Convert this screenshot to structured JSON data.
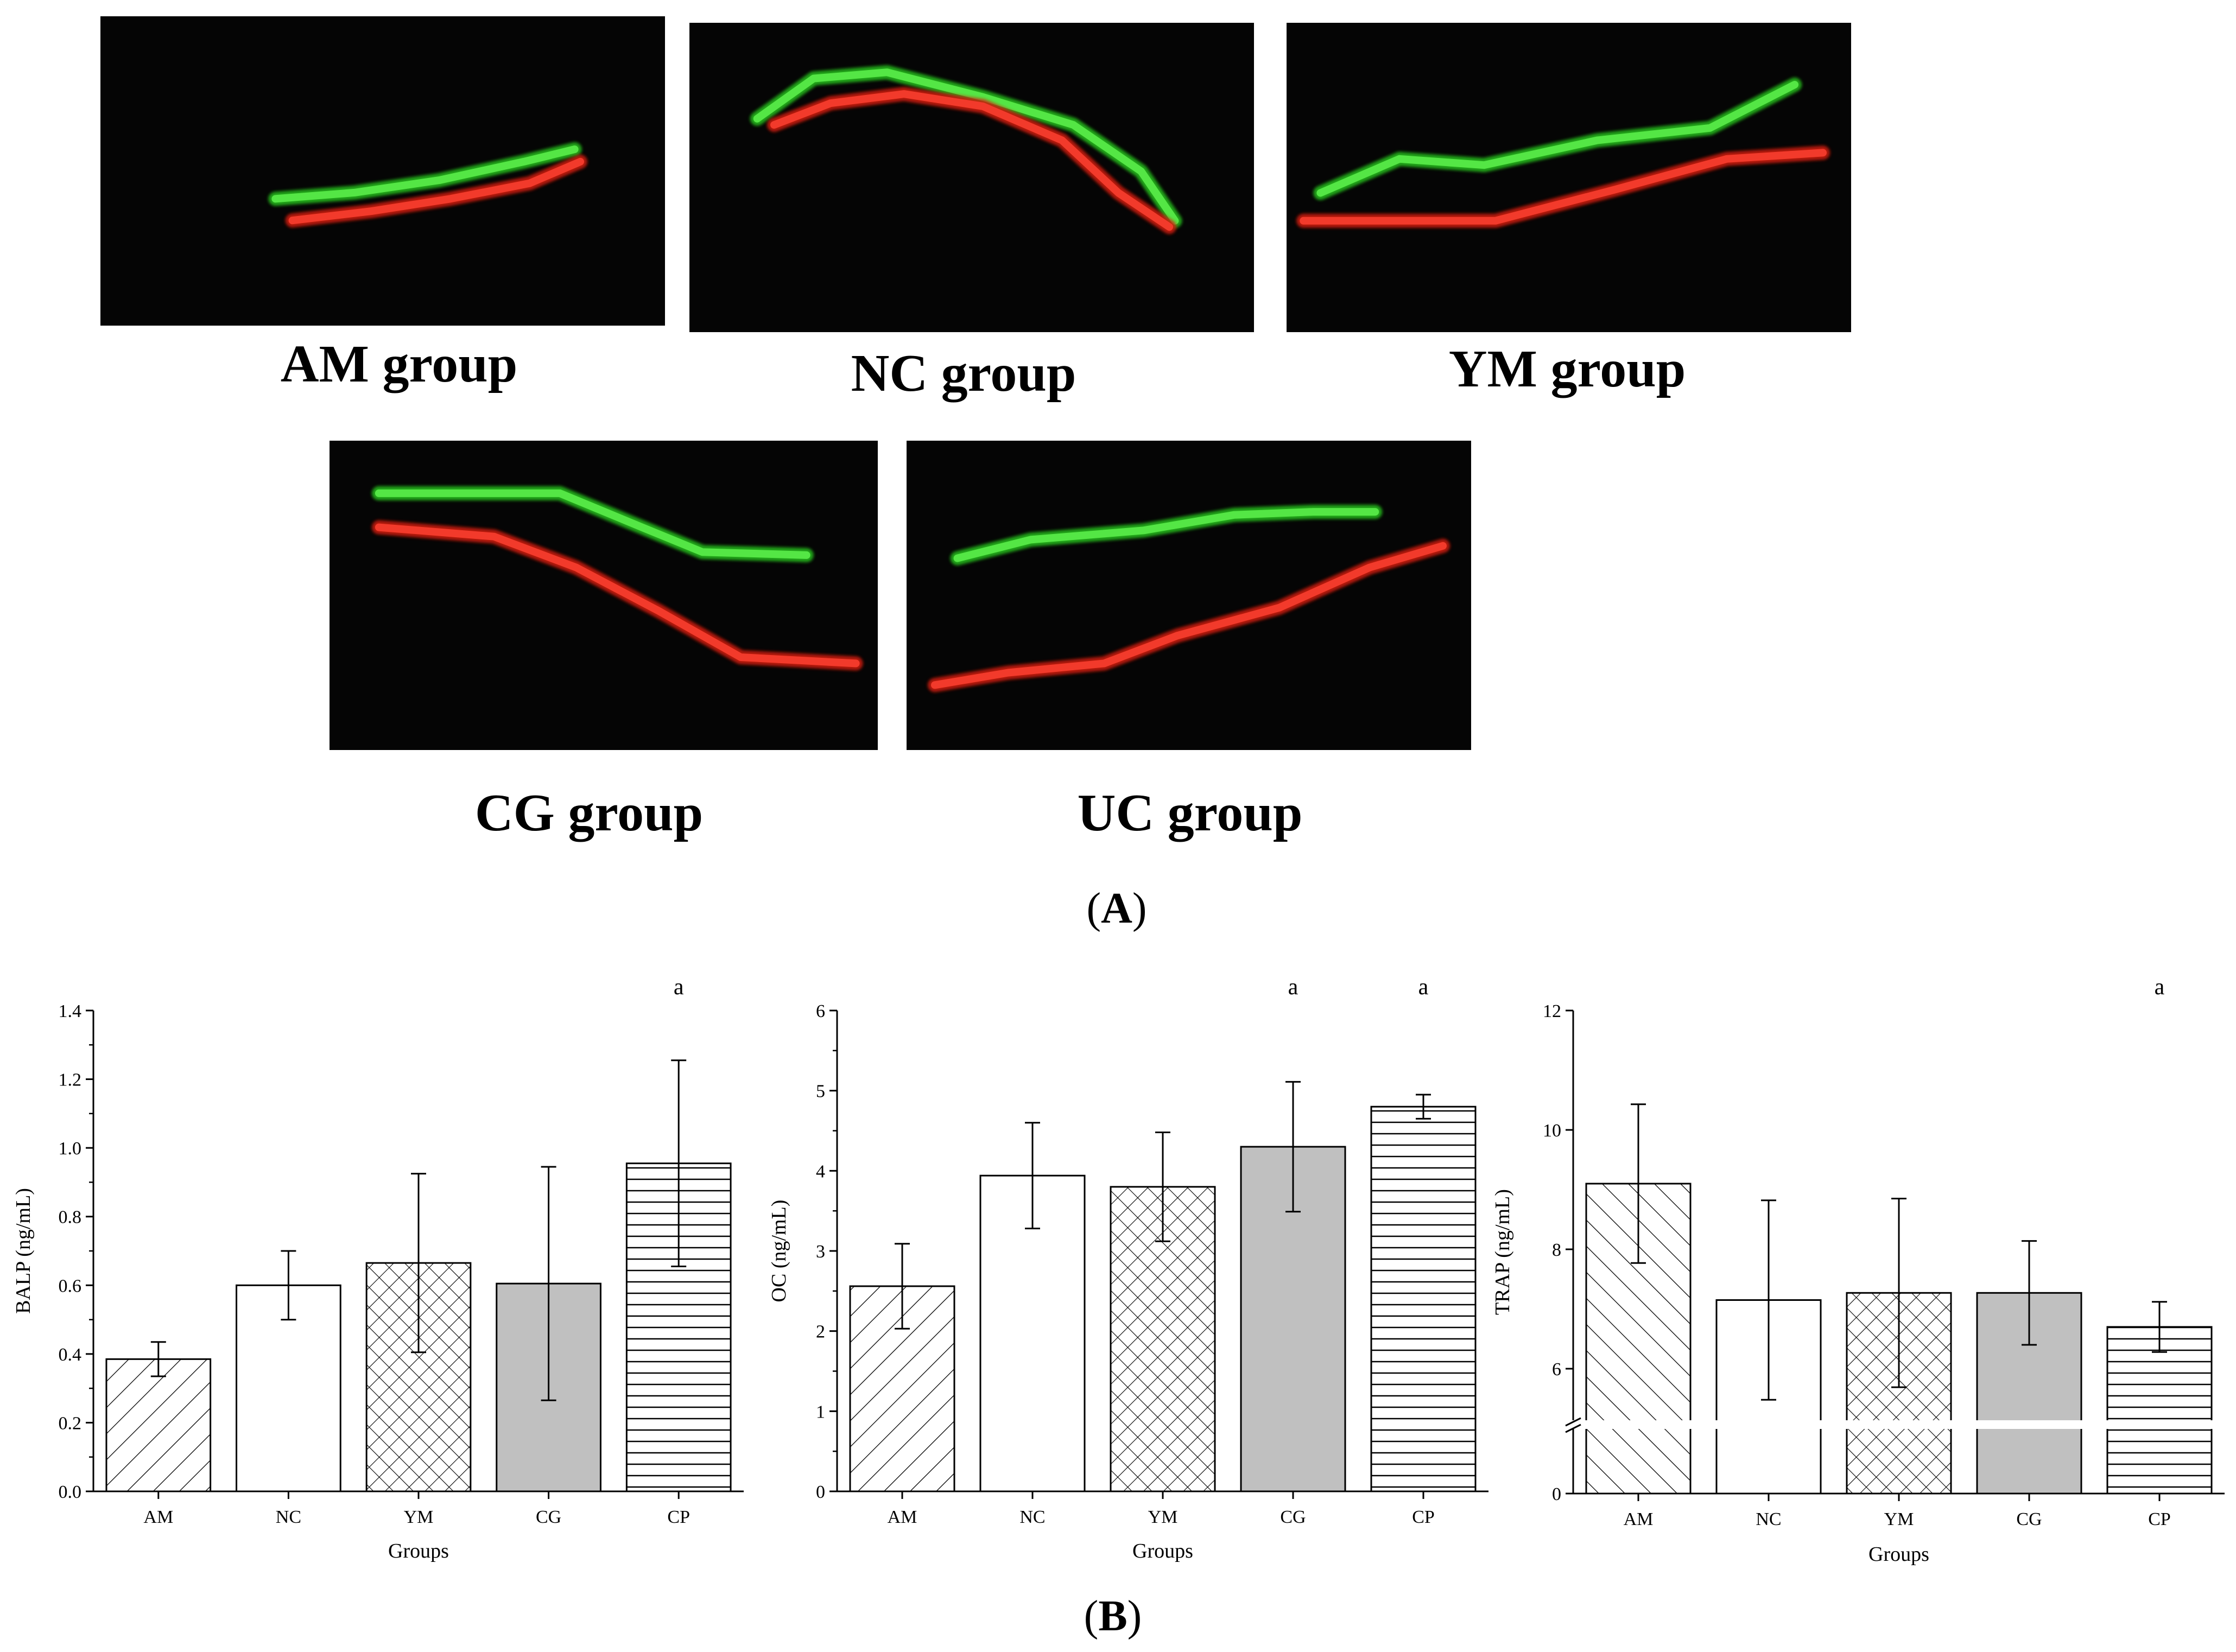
{
  "panel_a": {
    "label": "(A)",
    "label_letter": "A",
    "images": [
      {
        "id": "am",
        "caption": "AM group",
        "green": [
          [
            0.31,
            0.59
          ],
          [
            0.45,
            0.57
          ],
          [
            0.6,
            0.53
          ],
          [
            0.75,
            0.47
          ],
          [
            0.84,
            0.43
          ]
        ],
        "red": [
          [
            0.34,
            0.66
          ],
          [
            0.48,
            0.63
          ],
          [
            0.62,
            0.59
          ],
          [
            0.76,
            0.54
          ],
          [
            0.85,
            0.47
          ]
        ]
      },
      {
        "id": "nc",
        "caption": "NC group",
        "green": [
          [
            0.12,
            0.31
          ],
          [
            0.22,
            0.18
          ],
          [
            0.35,
            0.16
          ],
          [
            0.52,
            0.24
          ],
          [
            0.68,
            0.33
          ],
          [
            0.8,
            0.48
          ],
          [
            0.86,
            0.64
          ]
        ],
        "red": [
          [
            0.15,
            0.33
          ],
          [
            0.25,
            0.26
          ],
          [
            0.38,
            0.23
          ],
          [
            0.52,
            0.27
          ],
          [
            0.66,
            0.38
          ],
          [
            0.76,
            0.55
          ],
          [
            0.85,
            0.66
          ]
        ]
      },
      {
        "id": "ym",
        "caption": "YM group",
        "green": [
          [
            0.06,
            0.55
          ],
          [
            0.2,
            0.44
          ],
          [
            0.35,
            0.46
          ],
          [
            0.55,
            0.38
          ],
          [
            0.75,
            0.34
          ],
          [
            0.9,
            0.2
          ]
        ],
        "red": [
          [
            0.03,
            0.64
          ],
          [
            0.18,
            0.64
          ],
          [
            0.37,
            0.64
          ],
          [
            0.58,
            0.54
          ],
          [
            0.78,
            0.44
          ],
          [
            0.95,
            0.42
          ]
        ]
      },
      {
        "id": "cg",
        "caption": "CG group",
        "green": [
          [
            0.09,
            0.17
          ],
          [
            0.2,
            0.17
          ],
          [
            0.42,
            0.17
          ],
          [
            0.57,
            0.28
          ],
          [
            0.68,
            0.36
          ],
          [
            0.87,
            0.37
          ]
        ],
        "red": [
          [
            0.09,
            0.28
          ],
          [
            0.3,
            0.31
          ],
          [
            0.45,
            0.41
          ],
          [
            0.6,
            0.55
          ],
          [
            0.75,
            0.7
          ],
          [
            0.96,
            0.72
          ]
        ]
      },
      {
        "id": "uc",
        "caption": "UC group",
        "green": [
          [
            0.09,
            0.38
          ],
          [
            0.22,
            0.32
          ],
          [
            0.42,
            0.29
          ],
          [
            0.58,
            0.24
          ],
          [
            0.72,
            0.23
          ],
          [
            0.83,
            0.23
          ]
        ],
        "red": [
          [
            0.05,
            0.79
          ],
          [
            0.18,
            0.75
          ],
          [
            0.35,
            0.72
          ],
          [
            0.48,
            0.63
          ],
          [
            0.66,
            0.54
          ],
          [
            0.82,
            0.41
          ],
          [
            0.95,
            0.34
          ]
        ]
      }
    ]
  },
  "panel_b": {
    "label": "(B)",
    "label_letter": "B"
  },
  "chart_data": [
    {
      "id": "balp",
      "type": "bar",
      "categories": [
        "AM",
        "NC",
        "YM",
        "CG",
        "CP"
      ],
      "values": [
        0.385,
        0.6,
        0.665,
        0.605,
        0.955
      ],
      "errors": [
        0.05,
        0.1,
        0.26,
        0.34,
        0.3
      ],
      "patterns": [
        "diag-right",
        "none",
        "crosshatch",
        "gray",
        "horizontal"
      ],
      "significance": [
        "",
        "",
        "",
        "",
        "a"
      ],
      "xlabel": "Groups",
      "ylabel": "BALP (ng/mL)",
      "ylim": [
        0,
        1.4
      ],
      "yticks": [
        0.0,
        0.2,
        0.4,
        0.6,
        0.8,
        1.0,
        1.2,
        1.4
      ],
      "ytick_labels": [
        "0.0",
        "0.2",
        "0.4",
        "0.6",
        "0.8",
        "1.0",
        "1.2",
        "1.4"
      ]
    },
    {
      "id": "oc",
      "type": "bar",
      "categories": [
        "AM",
        "NC",
        "YM",
        "CG",
        "CP"
      ],
      "values": [
        2.56,
        3.94,
        3.8,
        4.3,
        4.8
      ],
      "errors": [
        0.53,
        0.66,
        0.68,
        0.81,
        0.15
      ],
      "patterns": [
        "diag-right",
        "none",
        "crosshatch",
        "gray",
        "horizontal"
      ],
      "significance": [
        "",
        "",
        "",
        "a",
        "a"
      ],
      "xlabel": "Groups",
      "ylabel": "OC (ng/mL)",
      "ylim": [
        0,
        6
      ],
      "yticks": [
        0,
        1,
        2,
        3,
        4,
        5,
        6
      ],
      "ytick_labels": [
        "0",
        "1",
        "2",
        "3",
        "4",
        "5",
        "6"
      ]
    },
    {
      "id": "trap",
      "type": "bar",
      "categories": [
        "AM",
        "NC",
        "YM",
        "CG",
        "CP"
      ],
      "values": [
        9.1,
        7.15,
        7.27,
        7.27,
        6.7
      ],
      "errors": [
        1.33,
        1.67,
        1.58,
        0.87,
        0.42
      ],
      "patterns": [
        "diag-left",
        "none",
        "crosshatch",
        "gray",
        "horizontal"
      ],
      "significance": [
        "",
        "",
        "",
        "",
        "a"
      ],
      "xlabel": "Groups",
      "ylabel": "TRAP (ng/mL)",
      "ylim": [
        0,
        12
      ],
      "axis_break": [
        0,
        5
      ],
      "yticks": [
        0,
        6,
        8,
        10,
        12
      ],
      "ytick_labels": [
        "0",
        "6",
        "8",
        "10",
        "12"
      ]
    }
  ]
}
